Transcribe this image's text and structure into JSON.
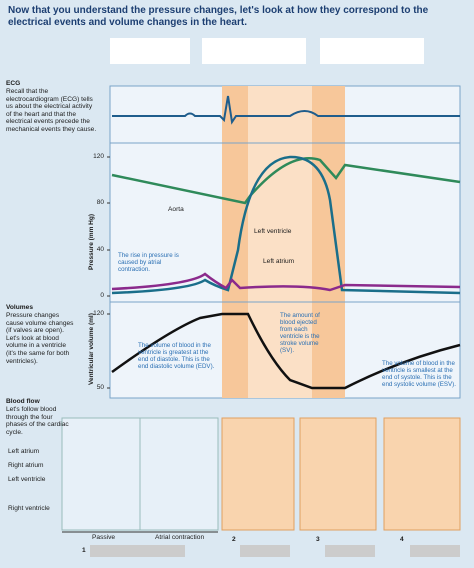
{
  "title": "Now that you understand the pressure changes, let's look at how they correspond to the electrical events and volume changes in the heart.",
  "ecg": {
    "heading": "ECG",
    "text": "Recall that the electrocardiogram (ECG) tells us about the electrical activity of the heart and that the electrical events precede the mechanical events they cause."
  },
  "pressure": {
    "axis_label": "Pressure (mm Hg)",
    "ticks": [
      120,
      80,
      40,
      0
    ],
    "labels": [
      "Aorta",
      "Left ventricle",
      "Left atrium"
    ],
    "note": "The rise in pressure is caused by atrial contraction."
  },
  "volumes": {
    "heading": "Volumes",
    "text": "Pressure changes cause volume changes (if valves are open). Let's look at blood volume in a ventricle (it's the same for both ventricles)."
  },
  "volume": {
    "axis_label": "Ventricular volume (ml)",
    "ticks": [
      120,
      50
    ],
    "notes": [
      "The volume of blood in the ventricle is greatest at the end of diastole. This is the end diastolic volume (EDV).",
      "The amount of blood ejected from each ventricle is the stroke volume (SV).",
      "The volume of blood in the ventricle is smallest at the end of systole. This is the end systolic volume (ESV)."
    ]
  },
  "blood_flow": {
    "heading": "Blood flow",
    "text": "Let's follow blood through the four phases of the cardiac cycle."
  },
  "hearts": {
    "labels": [
      "Left atrium",
      "Right atrium",
      "Left ventricle",
      "Right ventricle"
    ]
  },
  "phases": {
    "sub": [
      "Passive",
      "Atrial contraction"
    ],
    "numbers": [
      "1",
      "2",
      "3",
      "4"
    ]
  }
}
